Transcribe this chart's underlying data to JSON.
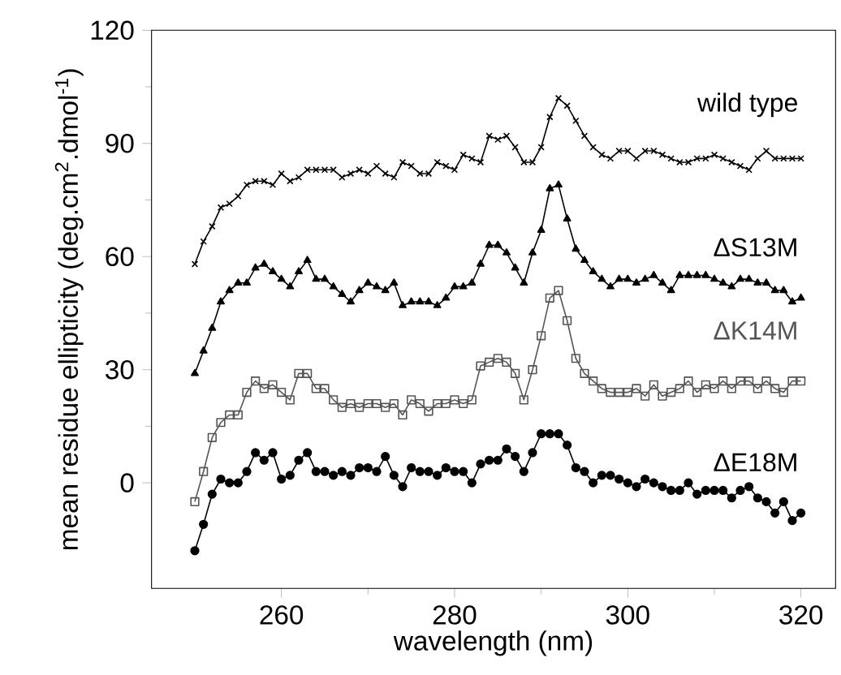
{
  "chart_data": {
    "type": "line",
    "xlabel": "wavelength (nm)",
    "ylabel": "mean residue ellipticity (deg.cm$^{2}$.dmol$^{-1}$)",
    "x": [
      250,
      251,
      252,
      253,
      254,
      255,
      256,
      257,
      258,
      259,
      260,
      261,
      262,
      263,
      264,
      265,
      266,
      267,
      268,
      269,
      270,
      271,
      272,
      273,
      274,
      275,
      276,
      277,
      278,
      279,
      280,
      281,
      282,
      283,
      284,
      285,
      286,
      287,
      288,
      289,
      290,
      291,
      292,
      293,
      294,
      295,
      296,
      297,
      298,
      299,
      300,
      301,
      302,
      303,
      304,
      305,
      306,
      307,
      308,
      309,
      310,
      311,
      312,
      313,
      314,
      315,
      316,
      317,
      318,
      319,
      320
    ],
    "xlim": [
      245,
      324
    ],
    "xticks": [
      260,
      280,
      300,
      320
    ],
    "ylim": [
      -28,
      120
    ],
    "yticks": [
      0,
      30,
      60,
      90,
      120
    ],
    "grid": false,
    "legend": false,
    "line_style": "solid",
    "series": [
      {
        "name": "wild type",
        "color": "#000000",
        "marker": "cross",
        "values": [
          58,
          64,
          68,
          73,
          74,
          76,
          79,
          80,
          80,
          79,
          82,
          80,
          81,
          83,
          83,
          83,
          83,
          81,
          82,
          83,
          82,
          84,
          82,
          81,
          85,
          84,
          82,
          82,
          85,
          84,
          83,
          87,
          86,
          85,
          92,
          91,
          92,
          89,
          85,
          85,
          89,
          97,
          102,
          100,
          96,
          92,
          89,
          87,
          86,
          88,
          88,
          86,
          88,
          88,
          87,
          86,
          85,
          85,
          86,
          86,
          87,
          86,
          85,
          84,
          83,
          86,
          88,
          86,
          86,
          86,
          86
        ]
      },
      {
        "name": "ΔS13M",
        "color": "#000000",
        "marker": "triangle",
        "values": [
          29,
          35,
          41,
          48,
          51,
          53,
          53,
          57,
          58,
          56,
          54,
          52,
          56,
          59,
          54,
          54,
          52,
          50,
          48,
          51,
          53,
          52,
          51,
          53,
          47,
          48,
          48,
          48,
          47,
          49,
          52,
          52,
          53,
          58,
          63,
          63,
          61,
          57,
          53,
          61,
          67,
          78,
          79,
          70,
          62,
          59,
          56,
          54,
          52,
          54,
          54,
          53,
          54,
          55,
          53,
          51,
          55,
          55,
          55,
          55,
          54,
          53,
          52,
          54,
          54,
          53,
          53,
          51,
          51,
          48,
          49
        ]
      },
      {
        "name": "ΔK14M",
        "color": "#555555",
        "marker": "square",
        "values": [
          -5,
          3,
          12,
          16,
          18,
          18,
          24,
          27,
          25,
          26,
          24,
          22,
          29,
          29,
          25,
          25,
          22,
          20,
          21,
          20,
          21,
          21,
          20,
          21,
          18,
          22,
          21,
          19,
          21,
          21,
          22,
          21,
          22,
          31,
          32,
          33,
          32,
          29,
          22,
          30,
          39,
          49,
          51,
          43,
          33,
          29,
          27,
          25,
          24,
          24,
          24,
          25,
          23,
          26,
          23,
          24,
          25,
          27,
          24,
          26,
          25,
          27,
          25,
          27,
          27,
          25,
          27,
          25,
          24,
          27,
          27
        ]
      },
      {
        "name": "ΔE18M",
        "color": "#000000",
        "marker": "circle",
        "values": [
          -18,
          -11,
          -3,
          1,
          0,
          0,
          3,
          8,
          6,
          8,
          1,
          2,
          6,
          8,
          3,
          3,
          2,
          3,
          2,
          4,
          4,
          3,
          7,
          2,
          -1,
          4,
          3,
          3,
          2,
          4,
          3,
          3,
          0,
          5,
          6,
          6,
          9,
          7,
          3,
          8,
          13,
          13,
          13,
          10,
          4,
          3,
          0,
          2,
          2,
          1,
          0,
          -1,
          1,
          0,
          -1,
          -2,
          -2,
          0,
          -3,
          -2,
          -2,
          -2,
          -4,
          -2,
          -1,
          -4,
          -5,
          -8,
          -5,
          -10,
          -8
        ]
      }
    ]
  }
}
